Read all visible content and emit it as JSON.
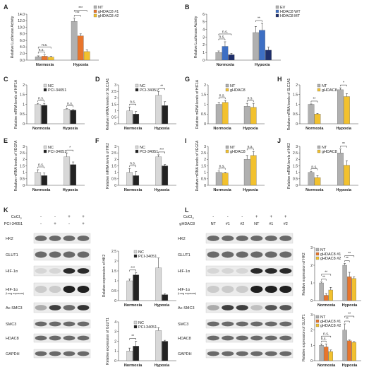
{
  "colors": {
    "nt": "#b0b0b0",
    "gH1": "#e8752c",
    "gH2": "#f2c12e",
    "ev": "#b0b0b0",
    "wt": "#3d6fc4",
    "mt": "#1f2f6b",
    "nc": "#d8d8d8",
    "pci": "#222222",
    "ntg": "#b0b0b0",
    "gH": "#f2c12e"
  },
  "chart_data": [
    {
      "panel": "A",
      "type": "bar",
      "categories": [
        "Normoxia",
        "Hypoxia"
      ],
      "ylabel": "Relative Luciferase Activity",
      "ylim": [
        0,
        14
      ],
      "yticks": [
        "0.0",
        "2.0",
        "4.0",
        "6.0",
        "8.0",
        "10.0",
        "12.0",
        "14.0"
      ],
      "series": [
        {
          "name": "NT",
          "values": [
            1.0,
            11.8
          ],
          "err": [
            0.3,
            1.0
          ]
        },
        {
          "name": "gHDAC8 #1",
          "values": [
            1.2,
            7.4
          ],
          "err": [
            0.4,
            0.6
          ]
        },
        {
          "name": "gHDAC8 #2",
          "values": [
            0.9,
            2.6
          ],
          "err": [
            0.3,
            0.5
          ]
        }
      ],
      "annotations": [
        "n.s.",
        "n.s.",
        "***",
        "***"
      ]
    },
    {
      "panel": "B",
      "type": "bar",
      "categories": [
        "Normoxia",
        "Hypoxia"
      ],
      "ylabel": "Relative Luciferase Activity",
      "ylim": [
        0,
        6
      ],
      "yticks": [
        "0",
        "1",
        "2",
        "3",
        "4",
        "5",
        "6"
      ],
      "series": [
        {
          "name": "EV",
          "values": [
            1.0,
            3.6
          ],
          "err": [
            0.2,
            0.8
          ]
        },
        {
          "name": "HDAC8 WT",
          "values": [
            1.8,
            3.9
          ],
          "err": [
            0.6,
            0.9
          ]
        },
        {
          "name": "HDAC8 MT",
          "values": [
            0.7,
            1.3
          ],
          "err": [
            0.2,
            0.4
          ]
        }
      ],
      "annotations": [
        "n.s.",
        "n.s.",
        "**"
      ]
    },
    {
      "panel": "C",
      "type": "bar",
      "categories": [
        "Normoxia",
        "Hypoxia"
      ],
      "ylabel": "Relative mRNA levels of HIF1A",
      "ylim": [
        0,
        2
      ],
      "yticks": [
        "0",
        "0.5",
        "1",
        "1.5",
        "2"
      ],
      "series": [
        {
          "name": "NC",
          "values": [
            1.0,
            0.75
          ],
          "err": [
            0.05,
            0.03
          ]
        },
        {
          "name": "PCI-34051",
          "values": [
            0.95,
            0.7
          ],
          "err": [
            0.1,
            0.03
          ]
        }
      ],
      "annotations": [
        "n.s.",
        "n.s."
      ]
    },
    {
      "panel": "D",
      "type": "bar",
      "categories": [
        "Normoxia",
        "Hypoxia"
      ],
      "ylabel": "Relative mRNA levels of SLC2A1",
      "ylim": [
        0,
        3
      ],
      "yticks": [
        "0",
        "0.5",
        "1",
        "1.5",
        "2",
        "2.5",
        "3"
      ],
      "series": [
        {
          "name": "NC",
          "values": [
            1.0,
            2.2
          ],
          "err": [
            0.3,
            0.3
          ]
        },
        {
          "name": "PCI-34051",
          "values": [
            0.75,
            1.4
          ],
          "err": [
            0.2,
            0.3
          ]
        }
      ],
      "annotations": [
        "n.s.",
        "**"
      ]
    },
    {
      "panel": "E",
      "type": "bar",
      "categories": [
        "Normoxia",
        "Hypoxia"
      ],
      "ylabel": "Relative mRNA levels of VEGFA",
      "ylim": [
        0,
        3
      ],
      "yticks": [
        "0",
        "0.5",
        "1",
        "1.5",
        "2",
        "2.5",
        "3"
      ],
      "series": [
        {
          "name": "NC",
          "values": [
            1.0,
            2.2
          ],
          "err": [
            0.2,
            0.3
          ]
        },
        {
          "name": "PCI-34051",
          "values": [
            0.75,
            1.6
          ],
          "err": [
            0.2,
            0.2
          ]
        }
      ],
      "annotations": [
        "n.s.",
        "*"
      ]
    },
    {
      "panel": "F",
      "type": "bar",
      "categories": [
        "Normoxia",
        "Hypoxia"
      ],
      "ylabel": "Relative mRNA levels of HK2",
      "ylim": [
        0,
        3
      ],
      "yticks": [
        "0",
        "0.5",
        "1",
        "1.5",
        "2",
        "2.5",
        "3"
      ],
      "series": [
        {
          "name": "NC",
          "values": [
            1.0,
            2.2
          ],
          "err": [
            0.3,
            0.15
          ]
        },
        {
          "name": "PCI-34051",
          "values": [
            0.75,
            1.5
          ],
          "err": [
            0.3,
            0.1
          ]
        }
      ],
      "annotations": [
        "n.s.",
        "***"
      ]
    },
    {
      "panel": "G",
      "type": "bar",
      "categories": [
        "Normoxia",
        "Hypoxia"
      ],
      "ylabel": "Relative mRNA levels of HIF1A",
      "ylim": [
        0,
        2
      ],
      "yticks": [
        "0",
        "0.5",
        "1",
        "1.5",
        "2"
      ],
      "series": [
        {
          "name": "NT",
          "values": [
            1.0,
            0.9
          ],
          "err": [
            0.1,
            0.15
          ]
        },
        {
          "name": "gHDAC8",
          "values": [
            1.1,
            0.85
          ],
          "err": [
            0.1,
            0.2
          ]
        }
      ],
      "annotations": [
        "n.s.",
        "n.s."
      ]
    },
    {
      "panel": "H",
      "type": "bar",
      "categories": [
        "Normoxia",
        "Hypoxia"
      ],
      "ylabel": "Relative mRNA levels of SLC2A1",
      "ylim": [
        0,
        2
      ],
      "yticks": [
        "0",
        "0.5",
        "1",
        "1.5",
        "2"
      ],
      "series": [
        {
          "name": "NT",
          "values": [
            1.0,
            1.75
          ],
          "err": [
            0.02,
            0.1
          ]
        },
        {
          "name": "gHDAC8",
          "values": [
            0.5,
            1.4
          ],
          "err": [
            0.03,
            0.15
          ]
        }
      ],
      "annotations": [
        "**",
        "*"
      ]
    },
    {
      "panel": "I",
      "type": "bar",
      "categories": [
        "Normoxia",
        "Hypoxia"
      ],
      "ylabel": "Relative mRNA levels of VEGFA",
      "ylim": [
        0,
        3
      ],
      "yticks": [
        "0",
        "0.5",
        "1",
        "1.5",
        "2",
        "2.5",
        "3"
      ],
      "series": [
        {
          "name": "NT",
          "values": [
            1.0,
            2.0
          ],
          "err": [
            0.1,
            0.3
          ]
        },
        {
          "name": "gHDAC8",
          "values": [
            0.95,
            2.3
          ],
          "err": [
            0.05,
            0.3
          ]
        }
      ],
      "annotations": [
        "n.s.",
        "n.s."
      ]
    },
    {
      "panel": "J",
      "type": "bar",
      "categories": [
        "Normoxia",
        "Hypoxia"
      ],
      "ylabel": "Relative mRNA levels of HK2",
      "ylim": [
        0,
        3
      ],
      "yticks": [
        "0",
        "0.5",
        "1",
        "1.5",
        "2",
        "2.5",
        "3"
      ],
      "series": [
        {
          "name": "NT",
          "values": [
            1.0,
            2.5
          ],
          "err": [
            0.05,
            0.3
          ]
        },
        {
          "name": "gHDAC8",
          "values": [
            0.6,
            1.55
          ],
          "err": [
            0.15,
            0.35
          ]
        }
      ],
      "annotations": [
        "n.s.",
        "**"
      ]
    },
    {
      "panel": "K-HK2",
      "type": "bar",
      "categories": [
        "Normoxia",
        "Hypoxia"
      ],
      "ylabel": "Relative expression of HK2",
      "ylim": [
        0,
        2.5
      ],
      "yticks": [
        "0",
        "0.5",
        "1",
        "1.5",
        "2",
        "2.5"
      ],
      "series": [
        {
          "name": "NC",
          "values": [
            1.0,
            1.65
          ],
          "err": [
            0.1,
            0.5
          ]
        },
        {
          "name": "PCI-34051",
          "values": [
            1.3,
            0.3
          ],
          "err": [
            0.1,
            0.05
          ]
        }
      ],
      "annotations": [
        "***"
      ]
    },
    {
      "panel": "K-GLUT1",
      "type": "bar",
      "categories": [
        "Normoxia",
        "Hypoxia"
      ],
      "ylabel": "Relative expression of GLUT1",
      "ylim": [
        0,
        4
      ],
      "yticks": [
        "0",
        "1",
        "2",
        "3",
        "4"
      ],
      "series": [
        {
          "name": "NC",
          "values": [
            1.0,
            3.1
          ],
          "err": [
            0.3,
            0.3
          ]
        },
        {
          "name": "PCI-34051",
          "values": [
            1.5,
            2.0
          ],
          "err": [
            0.5,
            0.1
          ]
        }
      ],
      "annotations": [
        "**"
      ]
    },
    {
      "panel": "L-HK2",
      "type": "bar",
      "categories": [
        "Normoxia",
        "Hypoxia"
      ],
      "ylabel": "Relative expression of HK2",
      "ylim": [
        0,
        3
      ],
      "yticks": [
        "0",
        "1",
        "2",
        "3"
      ],
      "series": [
        {
          "name": "NT",
          "values": [
            1.0,
            2.0
          ],
          "err": [
            0.05,
            0.1
          ]
        },
        {
          "name": "gHDAC8 #1",
          "values": [
            0.3,
            1.35
          ],
          "err": [
            0.1,
            0.25
          ]
        },
        {
          "name": "gHDAC8 #2",
          "values": [
            0.6,
            1.25
          ],
          "err": [
            0.15,
            0.1
          ]
        }
      ],
      "annotations": [
        "**",
        "**",
        "**",
        "**"
      ]
    },
    {
      "panel": "L-GLUT1",
      "type": "bar",
      "categories": [
        "Normoxia",
        "Hypoxia"
      ],
      "ylabel": "Relative expression of GLUT1",
      "ylim": [
        0,
        3
      ],
      "yticks": [
        "0",
        "1",
        "2",
        "3"
      ],
      "series": [
        {
          "name": "NT",
          "values": [
            1.0,
            2.0
          ],
          "err": [
            0.1,
            0.4
          ]
        },
        {
          "name": "gHDAC8 #1",
          "values": [
            0.9,
            1.3
          ],
          "err": [
            0.2,
            0.05
          ]
        },
        {
          "name": "gHDAC8 #2",
          "values": [
            0.6,
            1.2
          ],
          "err": [
            0.1,
            0.05
          ]
        }
      ],
      "annotations": [
        "n.s.",
        "n.s.",
        "**",
        "**"
      ]
    }
  ],
  "panel_letters": [
    "A",
    "B",
    "C",
    "D",
    "E",
    "F",
    "G",
    "H",
    "I",
    "J",
    "K",
    "L"
  ],
  "blotK": {
    "cond_labels": [
      "CoCl",
      "PCI-34051"
    ],
    "sub2": "2",
    "cocl_signs": [
      "-",
      "-",
      "+",
      "+"
    ],
    "pci_signs": [
      "-",
      "+",
      "-",
      "+"
    ],
    "rows": [
      "HK2",
      "GLUT1",
      "HIF-1α",
      "HIF-1α",
      "Ac-SMC3",
      "SMC3",
      "HDAC8",
      "GAPDH"
    ],
    "long_exposure": "(Long exposure)"
  },
  "blotL": {
    "cond_labels": [
      "CoCl",
      "gHDAC8"
    ],
    "sub2": "2",
    "cocl_signs": [
      "-",
      "-",
      "-",
      "+",
      "+",
      "+"
    ],
    "lanes": [
      "NT",
      "#1",
      "#2",
      "NT",
      "#1",
      "#2"
    ],
    "rows": [
      "HK2",
      "GLUT1",
      "HIF-1α",
      "HIF-1α",
      "Ac-SMC3",
      "SMC3",
      "HDAC8",
      "GAPDH"
    ],
    "long_exposure": "(Long exposure)"
  }
}
